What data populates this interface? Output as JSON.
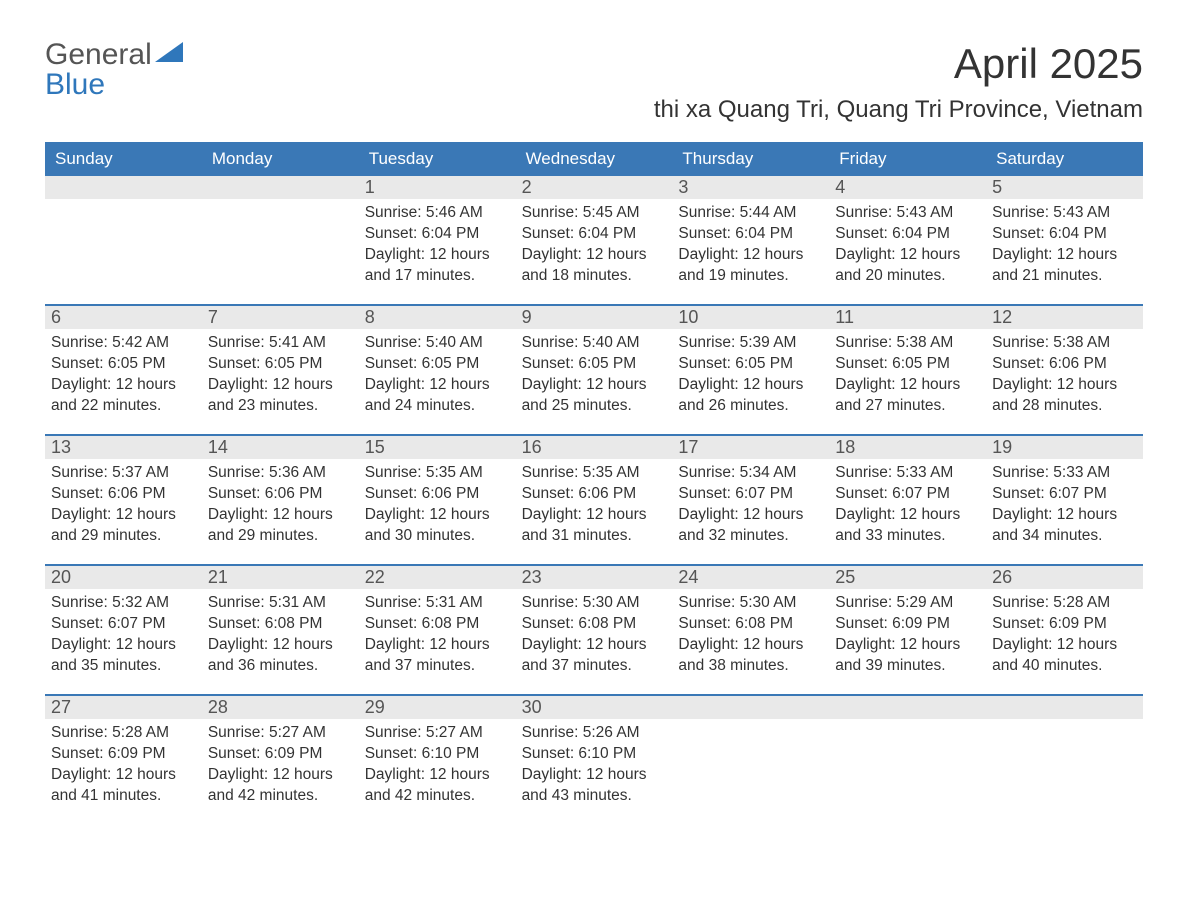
{
  "brand": {
    "word1": "General",
    "word2": "Blue"
  },
  "title": "April 2025",
  "location": "thi xa Quang Tri, Quang Tri Province, Vietnam",
  "colors": {
    "header_bg": "#3a78b6",
    "header_text": "#ffffff",
    "date_bar_bg": "#e9e9e9",
    "week_divider": "#3a78b6",
    "body_text": "#333333",
    "brand_blue": "#2f77bb"
  },
  "day_names": [
    "Sunday",
    "Monday",
    "Tuesday",
    "Wednesday",
    "Thursday",
    "Friday",
    "Saturday"
  ],
  "weeks": [
    [
      {
        "date": "",
        "sunrise": "",
        "sunset": "",
        "daylight": ""
      },
      {
        "date": "",
        "sunrise": "",
        "sunset": "",
        "daylight": ""
      },
      {
        "date": "1",
        "sunrise": "Sunrise: 5:46 AM",
        "sunset": "Sunset: 6:04 PM",
        "daylight": "Daylight: 12 hours and 17 minutes."
      },
      {
        "date": "2",
        "sunrise": "Sunrise: 5:45 AM",
        "sunset": "Sunset: 6:04 PM",
        "daylight": "Daylight: 12 hours and 18 minutes."
      },
      {
        "date": "3",
        "sunrise": "Sunrise: 5:44 AM",
        "sunset": "Sunset: 6:04 PM",
        "daylight": "Daylight: 12 hours and 19 minutes."
      },
      {
        "date": "4",
        "sunrise": "Sunrise: 5:43 AM",
        "sunset": "Sunset: 6:04 PM",
        "daylight": "Daylight: 12 hours and 20 minutes."
      },
      {
        "date": "5",
        "sunrise": "Sunrise: 5:43 AM",
        "sunset": "Sunset: 6:04 PM",
        "daylight": "Daylight: 12 hours and 21 minutes."
      }
    ],
    [
      {
        "date": "6",
        "sunrise": "Sunrise: 5:42 AM",
        "sunset": "Sunset: 6:05 PM",
        "daylight": "Daylight: 12 hours and 22 minutes."
      },
      {
        "date": "7",
        "sunrise": "Sunrise: 5:41 AM",
        "sunset": "Sunset: 6:05 PM",
        "daylight": "Daylight: 12 hours and 23 minutes."
      },
      {
        "date": "8",
        "sunrise": "Sunrise: 5:40 AM",
        "sunset": "Sunset: 6:05 PM",
        "daylight": "Daylight: 12 hours and 24 minutes."
      },
      {
        "date": "9",
        "sunrise": "Sunrise: 5:40 AM",
        "sunset": "Sunset: 6:05 PM",
        "daylight": "Daylight: 12 hours and 25 minutes."
      },
      {
        "date": "10",
        "sunrise": "Sunrise: 5:39 AM",
        "sunset": "Sunset: 6:05 PM",
        "daylight": "Daylight: 12 hours and 26 minutes."
      },
      {
        "date": "11",
        "sunrise": "Sunrise: 5:38 AM",
        "sunset": "Sunset: 6:05 PM",
        "daylight": "Daylight: 12 hours and 27 minutes."
      },
      {
        "date": "12",
        "sunrise": "Sunrise: 5:38 AM",
        "sunset": "Sunset: 6:06 PM",
        "daylight": "Daylight: 12 hours and 28 minutes."
      }
    ],
    [
      {
        "date": "13",
        "sunrise": "Sunrise: 5:37 AM",
        "sunset": "Sunset: 6:06 PM",
        "daylight": "Daylight: 12 hours and 29 minutes."
      },
      {
        "date": "14",
        "sunrise": "Sunrise: 5:36 AM",
        "sunset": "Sunset: 6:06 PM",
        "daylight": "Daylight: 12 hours and 29 minutes."
      },
      {
        "date": "15",
        "sunrise": "Sunrise: 5:35 AM",
        "sunset": "Sunset: 6:06 PM",
        "daylight": "Daylight: 12 hours and 30 minutes."
      },
      {
        "date": "16",
        "sunrise": "Sunrise: 5:35 AM",
        "sunset": "Sunset: 6:06 PM",
        "daylight": "Daylight: 12 hours and 31 minutes."
      },
      {
        "date": "17",
        "sunrise": "Sunrise: 5:34 AM",
        "sunset": "Sunset: 6:07 PM",
        "daylight": "Daylight: 12 hours and 32 minutes."
      },
      {
        "date": "18",
        "sunrise": "Sunrise: 5:33 AM",
        "sunset": "Sunset: 6:07 PM",
        "daylight": "Daylight: 12 hours and 33 minutes."
      },
      {
        "date": "19",
        "sunrise": "Sunrise: 5:33 AM",
        "sunset": "Sunset: 6:07 PM",
        "daylight": "Daylight: 12 hours and 34 minutes."
      }
    ],
    [
      {
        "date": "20",
        "sunrise": "Sunrise: 5:32 AM",
        "sunset": "Sunset: 6:07 PM",
        "daylight": "Daylight: 12 hours and 35 minutes."
      },
      {
        "date": "21",
        "sunrise": "Sunrise: 5:31 AM",
        "sunset": "Sunset: 6:08 PM",
        "daylight": "Daylight: 12 hours and 36 minutes."
      },
      {
        "date": "22",
        "sunrise": "Sunrise: 5:31 AM",
        "sunset": "Sunset: 6:08 PM",
        "daylight": "Daylight: 12 hours and 37 minutes."
      },
      {
        "date": "23",
        "sunrise": "Sunrise: 5:30 AM",
        "sunset": "Sunset: 6:08 PM",
        "daylight": "Daylight: 12 hours and 37 minutes."
      },
      {
        "date": "24",
        "sunrise": "Sunrise: 5:30 AM",
        "sunset": "Sunset: 6:08 PM",
        "daylight": "Daylight: 12 hours and 38 minutes."
      },
      {
        "date": "25",
        "sunrise": "Sunrise: 5:29 AM",
        "sunset": "Sunset: 6:09 PM",
        "daylight": "Daylight: 12 hours and 39 minutes."
      },
      {
        "date": "26",
        "sunrise": "Sunrise: 5:28 AM",
        "sunset": "Sunset: 6:09 PM",
        "daylight": "Daylight: 12 hours and 40 minutes."
      }
    ],
    [
      {
        "date": "27",
        "sunrise": "Sunrise: 5:28 AM",
        "sunset": "Sunset: 6:09 PM",
        "daylight": "Daylight: 12 hours and 41 minutes."
      },
      {
        "date": "28",
        "sunrise": "Sunrise: 5:27 AM",
        "sunset": "Sunset: 6:09 PM",
        "daylight": "Daylight: 12 hours and 42 minutes."
      },
      {
        "date": "29",
        "sunrise": "Sunrise: 5:27 AM",
        "sunset": "Sunset: 6:10 PM",
        "daylight": "Daylight: 12 hours and 42 minutes."
      },
      {
        "date": "30",
        "sunrise": "Sunrise: 5:26 AM",
        "sunset": "Sunset: 6:10 PM",
        "daylight": "Daylight: 12 hours and 43 minutes."
      },
      {
        "date": "",
        "sunrise": "",
        "sunset": "",
        "daylight": ""
      },
      {
        "date": "",
        "sunrise": "",
        "sunset": "",
        "daylight": ""
      },
      {
        "date": "",
        "sunrise": "",
        "sunset": "",
        "daylight": ""
      }
    ]
  ]
}
